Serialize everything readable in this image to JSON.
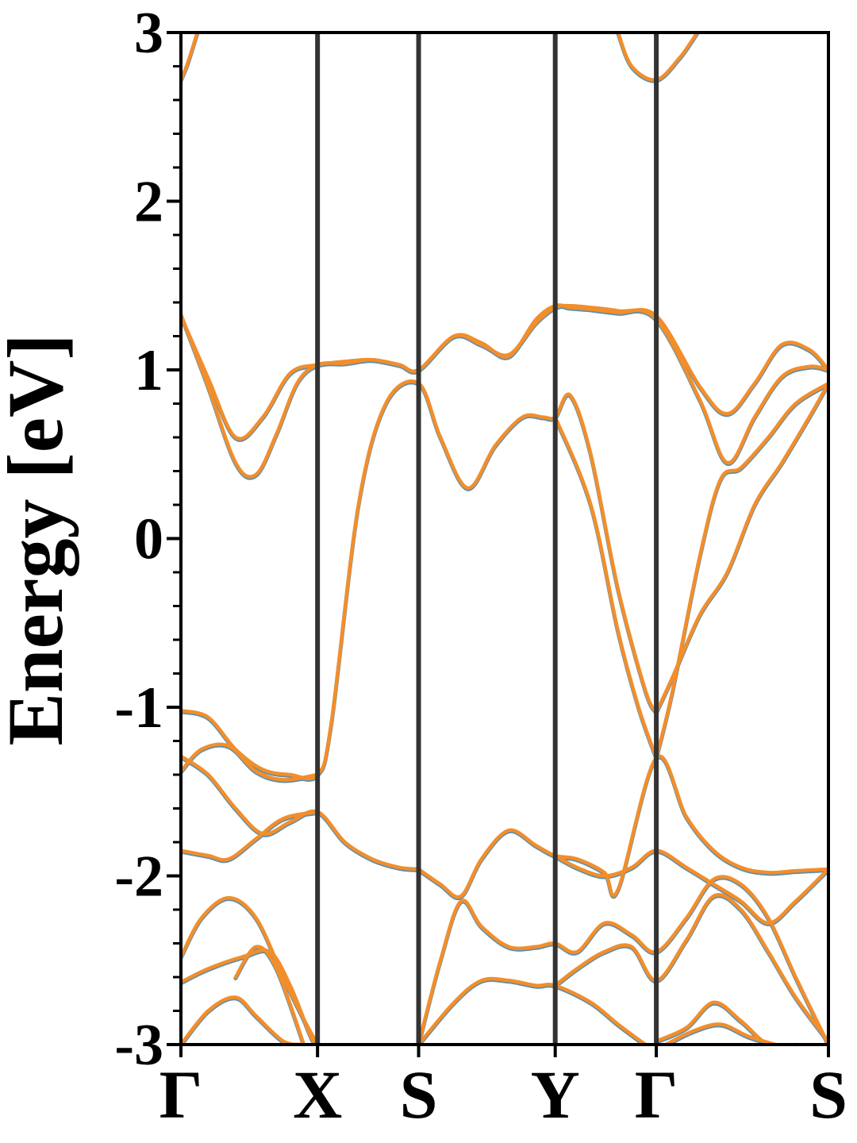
{
  "chart_data": {
    "type": "line",
    "title": "",
    "xlabel": "",
    "ylabel": "Energy [eV]",
    "ylim": [
      -3,
      3
    ],
    "xlim": [
      0,
      4.74
    ],
    "y_ticks": [
      {
        "value": 3,
        "label": "3"
      },
      {
        "value": 2,
        "label": "2"
      },
      {
        "value": 1,
        "label": "1"
      },
      {
        "value": 0,
        "label": "0"
      },
      {
        "value": -1,
        "label": "-1"
      },
      {
        "value": -2,
        "label": "-2"
      },
      {
        "value": -3,
        "label": "-3"
      }
    ],
    "y_minor_step": 0.2,
    "high_symmetry_points": [
      {
        "label": "Γ",
        "x": 0.0
      },
      {
        "label": "X",
        "x": 1.0
      },
      {
        "label": "S",
        "x": 1.74
      },
      {
        "label": "Y",
        "x": 2.74
      },
      {
        "label": "Γ",
        "x": 3.48
      },
      {
        "label": "S",
        "x": 4.74
      }
    ],
    "grid": false,
    "legend": "none",
    "colors": {
      "band": "#f28e2b",
      "band_shadow": "#5a8fb0",
      "divider": "#333333",
      "axis": "#000000"
    },
    "series": [
      {
        "x": [
          0,
          0.2,
          0.4,
          0.6,
          0.8,
          1.0,
          1.2,
          1.4,
          1.6,
          1.74,
          2.0,
          2.2,
          2.4,
          2.6,
          2.74,
          2.85,
          3.0,
          3.2,
          3.48,
          3.8,
          4.0,
          4.2,
          4.4,
          4.6,
          4.74
        ],
        "y": [
          1.32,
          0.95,
          0.6,
          0.72,
          0.98,
          1.03,
          1.05,
          1.06,
          1.03,
          1.0,
          1.2,
          1.16,
          1.08,
          1.3,
          1.38,
          1.37,
          1.36,
          1.34,
          1.32,
          0.9,
          0.74,
          0.92,
          1.15,
          1.12,
          1.0
        ]
      },
      {
        "x": [
          0,
          0.2,
          0.4,
          0.55,
          0.7,
          0.85,
          1.0,
          1.2,
          1.4,
          1.6,
          1.74,
          2.0,
          2.2,
          2.4,
          2.6,
          2.74,
          2.85,
          3.0,
          3.2,
          3.48,
          3.8,
          4.0,
          4.2,
          4.4,
          4.6,
          4.74
        ],
        "y": [
          1.33,
          0.9,
          0.45,
          0.38,
          0.62,
          0.92,
          1.03,
          1.04,
          1.06,
          1.03,
          1.0,
          1.2,
          1.15,
          1.09,
          1.28,
          1.37,
          1.38,
          1.37,
          1.35,
          1.3,
          0.82,
          0.45,
          0.72,
          0.96,
          1.02,
          1.0
        ]
      },
      {
        "x": [
          0,
          0.2,
          0.4,
          0.6,
          0.8,
          1.0,
          1.1,
          1.3,
          1.5,
          1.74,
          1.9,
          2.1,
          2.3,
          2.5,
          2.65,
          2.74,
          2.85,
          3.0,
          3.2,
          3.4,
          3.48
        ],
        "y": [
          -1.02,
          -1.06,
          -1.25,
          -1.37,
          -1.4,
          -1.4,
          -1.1,
          0.2,
          0.8,
          0.92,
          0.6,
          0.3,
          0.55,
          0.72,
          0.72,
          0.72,
          0.85,
          0.5,
          -0.3,
          -0.9,
          -1.03
        ]
      },
      {
        "x": [
          0,
          0.15,
          0.35,
          0.55,
          0.75,
          1.0
        ],
        "y": [
          -1.38,
          -1.25,
          -1.23,
          -1.38,
          -1.43,
          -1.4
        ]
      },
      {
        "x": [
          3.48,
          3.6,
          3.8,
          4.0,
          4.2,
          4.4,
          4.6,
          4.74
        ],
        "y": [
          -1.03,
          -0.82,
          -0.45,
          -0.2,
          0.2,
          0.45,
          0.72,
          0.92
        ]
      },
      {
        "x": [
          2.74,
          3.0,
          3.2,
          3.35,
          3.48
        ],
        "y": [
          0.72,
          0.2,
          -0.55,
          -1.0,
          -1.3
        ]
      },
      {
        "x": [
          3.48,
          3.6,
          3.8,
          3.95,
          4.1,
          4.3,
          4.5,
          4.74
        ],
        "y": [
          -1.3,
          -0.9,
          -0.1,
          0.35,
          0.42,
          0.6,
          0.8,
          0.92
        ]
      },
      {
        "x": [
          0,
          0.2,
          0.4,
          0.6,
          0.8,
          1.0,
          1.2,
          1.4,
          1.6,
          1.74
        ],
        "y": [
          -1.29,
          -1.4,
          -1.6,
          -1.75,
          -1.68,
          -1.62,
          -1.8,
          -1.9,
          -1.95,
          -1.96
        ]
      },
      {
        "x": [
          0,
          0.2,
          0.35,
          0.55,
          0.75,
          1.0
        ],
        "y": [
          -1.85,
          -1.88,
          -1.9,
          -1.78,
          -1.66,
          -1.62
        ]
      },
      {
        "x": [
          1.74,
          1.9,
          2.05,
          2.2,
          2.4,
          2.6,
          2.74,
          2.9,
          3.1,
          3.2,
          3.48,
          3.7,
          3.9,
          4.1,
          4.3,
          4.5,
          4.74
        ],
        "y": [
          -1.96,
          -2.05,
          -2.12,
          -1.9,
          -1.73,
          -1.82,
          -1.88,
          -1.9,
          -1.98,
          -2.08,
          -1.3,
          -1.65,
          -1.85,
          -1.95,
          -1.98,
          -1.97,
          -1.96
        ]
      },
      {
        "x": [
          2.74,
          2.9,
          3.1,
          3.3,
          3.48,
          3.7,
          3.9,
          4.1,
          4.3,
          4.5,
          4.74
        ],
        "y": [
          -1.88,
          -1.95,
          -2.0,
          -1.95,
          -1.85,
          -1.95,
          -2.05,
          -2.15,
          -2.28,
          -2.15,
          -1.96
        ]
      },
      {
        "x": [
          1.74,
          1.9,
          2.05,
          2.2,
          2.4,
          2.6,
          2.74,
          2.9,
          3.1,
          3.3,
          3.48,
          3.7,
          3.9,
          4.1,
          4.3,
          4.5,
          4.74
        ],
        "y": [
          -3.0,
          -2.5,
          -2.15,
          -2.3,
          -2.42,
          -2.42,
          -2.4,
          -2.45,
          -2.28,
          -2.35,
          -2.45,
          -2.25,
          -2.02,
          -2.05,
          -2.25,
          -2.6,
          -3.0
        ]
      },
      {
        "x": [
          2.74,
          2.9,
          3.1,
          3.3,
          3.48,
          3.7,
          3.9,
          4.1,
          4.3,
          4.5,
          4.74
        ],
        "y": [
          -2.65,
          -2.55,
          -2.45,
          -2.42,
          -2.62,
          -2.38,
          -2.12,
          -2.2,
          -2.45,
          -2.72,
          -2.98
        ]
      },
      {
        "x": [
          0,
          0.15,
          0.35,
          0.55,
          0.75,
          0.9,
          1.0
        ],
        "y": [
          -2.48,
          -2.25,
          -2.13,
          -2.25,
          -2.6,
          -2.85,
          -3.0
        ]
      },
      {
        "x": [
          0,
          0.2,
          0.45,
          0.65,
          0.8,
          0.95,
          1.0
        ],
        "y": [
          -2.63,
          -2.55,
          -2.48,
          -2.45,
          -2.65,
          -2.95,
          -3.0
        ]
      },
      {
        "x": [
          0,
          0.2,
          0.4,
          0.55,
          0.75,
          0.9
        ],
        "y": [
          -3.0,
          -2.8,
          -2.72,
          -2.83,
          -2.98,
          -3.0
        ]
      },
      {
        "x": [
          0.4,
          0.55,
          0.7,
          0.9
        ],
        "y": [
          -2.6,
          -2.42,
          -2.55,
          -3.0
        ]
      },
      {
        "x": [
          1.74,
          2.0,
          2.2,
          2.4,
          2.6,
          2.74,
          3.0,
          3.2,
          3.4
        ],
        "y": [
          -3.0,
          -2.75,
          -2.62,
          -2.62,
          -2.65,
          -2.65,
          -2.75,
          -2.88,
          -3.0
        ]
      },
      {
        "x": [
          3.48,
          3.7,
          3.9,
          4.1,
          4.3,
          4.5
        ],
        "y": [
          -2.98,
          -2.9,
          -2.75,
          -2.86,
          -3.0,
          -3.0
        ]
      },
      {
        "x": [
          3.55,
          3.75,
          3.95,
          4.15,
          4.35
        ],
        "y": [
          -3.0,
          -2.92,
          -2.88,
          -2.95,
          -3.0
        ]
      },
      {
        "x": [
          0,
          0.05,
          0.12
        ],
        "y": [
          2.72,
          2.82,
          3.0
        ]
      },
      {
        "x": [
          3.2,
          3.3,
          3.48,
          3.65,
          3.78
        ],
        "y": [
          3.0,
          2.8,
          2.72,
          2.85,
          3.0
        ]
      }
    ]
  }
}
